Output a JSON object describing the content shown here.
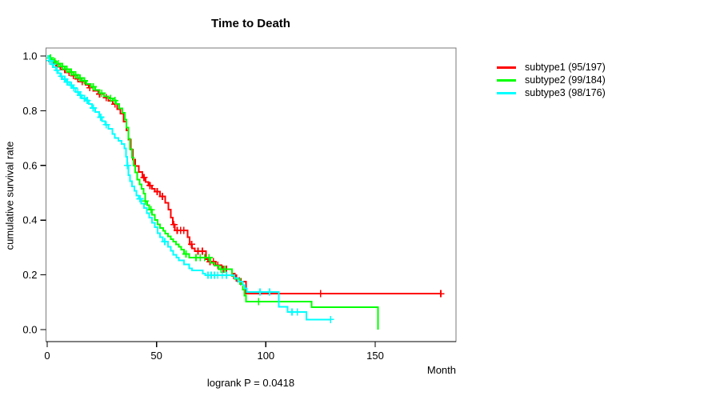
{
  "figure": {
    "title": "Time to Death",
    "ylabel": "cumulative survival rate",
    "xlabel": "Month",
    "footnote": "logrank P = 0.0418"
  },
  "legend": {
    "items": [
      {
        "label": "subtype1 (95/197)",
        "color": "#ff0000"
      },
      {
        "label": "subtype2 (99/184)",
        "color": "#00ff00"
      },
      {
        "label": "subtype3 (98/176)",
        "color": "#00ffff"
      }
    ]
  },
  "chart_data": {
    "type": "line",
    "variant": "kaplan-meier-step",
    "title": "Time to Death",
    "xlabel": "Month",
    "ylabel": "cumulative survival rate",
    "xlim": [
      0,
      187
    ],
    "ylim": [
      -0.04,
      1.04
    ],
    "xticks": [
      {
        "v": 0,
        "label": "0"
      },
      {
        "v": 50,
        "label": "50"
      },
      {
        "v": 100,
        "label": "100"
      },
      {
        "v": 150,
        "label": "150"
      }
    ],
    "yticks": [
      {
        "v": 0,
        "label": "0.0"
      },
      {
        "v": 0.2,
        "label": "0.2"
      },
      {
        "v": 0.4,
        "label": "0.4"
      },
      {
        "v": 0.6,
        "label": "0.6"
      },
      {
        "v": 0.8,
        "label": "0.8"
      },
      {
        "v": 1,
        "label": "1.0"
      }
    ],
    "grid": false,
    "legend_position": "right-outside",
    "logrank_p": 0.0418,
    "series": [
      {
        "name": "subtype1",
        "events_ratio": "95/197",
        "color": "#ff0000",
        "end_month": 180,
        "steps": [
          [
            0,
            1
          ],
          [
            1,
            0.99
          ],
          [
            2,
            0.98
          ],
          [
            3,
            0.971
          ],
          [
            5,
            0.961
          ],
          [
            7,
            0.951
          ],
          [
            9,
            0.94
          ],
          [
            11,
            0.928
          ],
          [
            13,
            0.917
          ],
          [
            15,
            0.906
          ],
          [
            17.5,
            0.895
          ],
          [
            19,
            0.884
          ],
          [
            21,
            0.873
          ],
          [
            23.5,
            0.861
          ],
          [
            26,
            0.848
          ],
          [
            28,
            0.836
          ],
          [
            30,
            0.824
          ],
          [
            32,
            0.806
          ],
          [
            33.5,
            0.79
          ],
          [
            35,
            0.76
          ],
          [
            36.2,
            0.728
          ],
          [
            37.2,
            0.695
          ],
          [
            38.2,
            0.658
          ],
          [
            39.2,
            0.622
          ],
          [
            40.2,
            0.598
          ],
          [
            41.8,
            0.576
          ],
          [
            43.5,
            0.556
          ],
          [
            45,
            0.54
          ],
          [
            46.2,
            0.527
          ],
          [
            48,
            0.514
          ],
          [
            49.2,
            0.504
          ],
          [
            51.6,
            0.487
          ],
          [
            54,
            0.463
          ],
          [
            55.5,
            0.438
          ],
          [
            56.5,
            0.41
          ],
          [
            57.5,
            0.384
          ],
          [
            58.3,
            0.362
          ],
          [
            64.2,
            0.337
          ],
          [
            65.2,
            0.312
          ],
          [
            66.3,
            0.297
          ],
          [
            67.5,
            0.287
          ],
          [
            72.6,
            0.258
          ],
          [
            73.6,
            0.248
          ],
          [
            77,
            0.236
          ],
          [
            79.7,
            0.221
          ],
          [
            84.6,
            0.205
          ],
          [
            85.8,
            0.189
          ],
          [
            87.1,
            0.176
          ],
          [
            91,
            0.131
          ]
        ],
        "censor_marks": [
          [
            2,
            0.98
          ],
          [
            4,
            0.971
          ],
          [
            6,
            0.961
          ],
          [
            8,
            0.951
          ],
          [
            10,
            0.94
          ],
          [
            12,
            0.928
          ],
          [
            14,
            0.917
          ],
          [
            16,
            0.906
          ],
          [
            19.5,
            0.884
          ],
          [
            24,
            0.861
          ],
          [
            27,
            0.848
          ],
          [
            31,
            0.824
          ],
          [
            44.3,
            0.556
          ],
          [
            47,
            0.527
          ],
          [
            50.3,
            0.504
          ],
          [
            52.7,
            0.487
          ],
          [
            57.9,
            0.384
          ],
          [
            59.5,
            0.362
          ],
          [
            61,
            0.362
          ],
          [
            62.5,
            0.362
          ],
          [
            66,
            0.312
          ],
          [
            69,
            0.287
          ],
          [
            71,
            0.287
          ],
          [
            74.5,
            0.248
          ],
          [
            76,
            0.248
          ],
          [
            78,
            0.236
          ],
          [
            80.5,
            0.221
          ],
          [
            82,
            0.221
          ],
          [
            86.5,
            0.189
          ],
          [
            88.5,
            0.176
          ],
          [
            125,
            0.131
          ],
          [
            180,
            0.131
          ]
        ]
      },
      {
        "name": "subtype2",
        "events_ratio": "99/184",
        "color": "#00ff00",
        "end_month": 151.2,
        "steps": [
          [
            0,
            1
          ],
          [
            1,
            0.993
          ],
          [
            2,
            0.986
          ],
          [
            3,
            0.979
          ],
          [
            4,
            0.972
          ],
          [
            6,
            0.962
          ],
          [
            8,
            0.952
          ],
          [
            10,
            0.942
          ],
          [
            12,
            0.931
          ],
          [
            14,
            0.92
          ],
          [
            16,
            0.909
          ],
          [
            18,
            0.898
          ],
          [
            20,
            0.887
          ],
          [
            22,
            0.876
          ],
          [
            24,
            0.864
          ],
          [
            26,
            0.853
          ],
          [
            28,
            0.845
          ],
          [
            30,
            0.837
          ],
          [
            31.5,
            0.824
          ],
          [
            33,
            0.809
          ],
          [
            34.3,
            0.793
          ],
          [
            35.5,
            0.768
          ],
          [
            36.3,
            0.738
          ],
          [
            37.1,
            0.698
          ],
          [
            37.9,
            0.659
          ],
          [
            38.7,
            0.628
          ],
          [
            39.5,
            0.6
          ],
          [
            40.3,
            0.574
          ],
          [
            41.2,
            0.548
          ],
          [
            42.2,
            0.53
          ],
          [
            43.1,
            0.514
          ],
          [
            44,
            0.497
          ],
          [
            44.9,
            0.47
          ],
          [
            45.8,
            0.455
          ],
          [
            46.7,
            0.438
          ],
          [
            48,
            0.419
          ],
          [
            49.2,
            0.4
          ],
          [
            50.4,
            0.385
          ],
          [
            51.6,
            0.371
          ],
          [
            53,
            0.361
          ],
          [
            54,
            0.351
          ],
          [
            55.2,
            0.341
          ],
          [
            56.5,
            0.331
          ],
          [
            57.7,
            0.322
          ],
          [
            58.9,
            0.312
          ],
          [
            60.1,
            0.302
          ],
          [
            61.3,
            0.292
          ],
          [
            62.6,
            0.276
          ],
          [
            65,
            0.263
          ],
          [
            74.7,
            0.244
          ],
          [
            76.5,
            0.234
          ],
          [
            78.4,
            0.221
          ],
          [
            84.5,
            0.196
          ],
          [
            85.7,
            0.185
          ],
          [
            88.2,
            0.166
          ],
          [
            89.4,
            0.146
          ],
          [
            90.2,
            0.124
          ],
          [
            91,
            0.103
          ],
          [
            121,
            0.082
          ],
          [
            151.2,
            0
          ]
        ],
        "censor_marks": [
          [
            1.5,
            0.993
          ],
          [
            3.5,
            0.979
          ],
          [
            5,
            0.972
          ],
          [
            7,
            0.962
          ],
          [
            9,
            0.952
          ],
          [
            11,
            0.942
          ],
          [
            13,
            0.931
          ],
          [
            15,
            0.92
          ],
          [
            17,
            0.909
          ],
          [
            21,
            0.887
          ],
          [
            25,
            0.864
          ],
          [
            29,
            0.845
          ],
          [
            31,
            0.837
          ],
          [
            44.9,
            0.47
          ],
          [
            47.5,
            0.438
          ],
          [
            63.5,
            0.276
          ],
          [
            68,
            0.263
          ],
          [
            70,
            0.263
          ],
          [
            72,
            0.263
          ],
          [
            74,
            0.263
          ],
          [
            79.5,
            0.221
          ],
          [
            81,
            0.221
          ],
          [
            96.7,
            0.103
          ]
        ]
      },
      {
        "name": "subtype3",
        "events_ratio": "98/176",
        "color": "#00ffff",
        "end_month": 129.6,
        "steps": [
          [
            0,
            1
          ],
          [
            0.5,
            0.992
          ],
          [
            1,
            0.983
          ],
          [
            2,
            0.97
          ],
          [
            3,
            0.959
          ],
          [
            4,
            0.948
          ],
          [
            5,
            0.937
          ],
          [
            6,
            0.926
          ],
          [
            7,
            0.915
          ],
          [
            8.5,
            0.905
          ],
          [
            10,
            0.894
          ],
          [
            11.5,
            0.883
          ],
          [
            13,
            0.869
          ],
          [
            14.5,
            0.856
          ],
          [
            16,
            0.845
          ],
          [
            17.6,
            0.837
          ],
          [
            19,
            0.824
          ],
          [
            20.5,
            0.81
          ],
          [
            22,
            0.795
          ],
          [
            23.7,
            0.776
          ],
          [
            25,
            0.762
          ],
          [
            26.5,
            0.749
          ],
          [
            28,
            0.734
          ],
          [
            29.8,
            0.715
          ],
          [
            31,
            0.701
          ],
          [
            32.6,
            0.69
          ],
          [
            34,
            0.679
          ],
          [
            35.3,
            0.663
          ],
          [
            36,
            0.632
          ],
          [
            36.6,
            0.6
          ],
          [
            37.2,
            0.565
          ],
          [
            37.8,
            0.542
          ],
          [
            38.8,
            0.524
          ],
          [
            39.8,
            0.508
          ],
          [
            40.8,
            0.49
          ],
          [
            41.8,
            0.478
          ],
          [
            43,
            0.461
          ],
          [
            44.3,
            0.444
          ],
          [
            45.5,
            0.426
          ],
          [
            46.7,
            0.41
          ],
          [
            48,
            0.39
          ],
          [
            49.2,
            0.375
          ],
          [
            50.4,
            0.352
          ],
          [
            51.6,
            0.337
          ],
          [
            52.8,
            0.322
          ],
          [
            55.3,
            0.303
          ],
          [
            56.5,
            0.288
          ],
          [
            57.7,
            0.274
          ],
          [
            59,
            0.263
          ],
          [
            60.1,
            0.253
          ],
          [
            62.6,
            0.239
          ],
          [
            65,
            0.224
          ],
          [
            66.2,
            0.217
          ],
          [
            71.1,
            0.205
          ],
          [
            72.3,
            0.199
          ],
          [
            85.7,
            0.189
          ],
          [
            87.2,
            0.176
          ],
          [
            89.4,
            0.162
          ],
          [
            90.3,
            0.15
          ],
          [
            91.2,
            0.137
          ],
          [
            105.9,
            0.084
          ],
          [
            110,
            0.064
          ],
          [
            118.6,
            0.037
          ]
        ],
        "censor_marks": [
          [
            1.2,
            0.983
          ],
          [
            2.5,
            0.97
          ],
          [
            4.5,
            0.948
          ],
          [
            6.5,
            0.926
          ],
          [
            8,
            0.915
          ],
          [
            9.2,
            0.905
          ],
          [
            11,
            0.894
          ],
          [
            12.2,
            0.883
          ],
          [
            14,
            0.869
          ],
          [
            15.2,
            0.856
          ],
          [
            17,
            0.845
          ],
          [
            18.3,
            0.837
          ],
          [
            21,
            0.81
          ],
          [
            24.5,
            0.776
          ],
          [
            27,
            0.749
          ],
          [
            36.8,
            0.6
          ],
          [
            42.4,
            0.478
          ],
          [
            53.8,
            0.322
          ],
          [
            73.5,
            0.199
          ],
          [
            75,
            0.199
          ],
          [
            76.5,
            0.199
          ],
          [
            78,
            0.199
          ],
          [
            80,
            0.199
          ],
          [
            82,
            0.199
          ],
          [
            97.3,
            0.137
          ],
          [
            101.7,
            0.137
          ],
          [
            112,
            0.064
          ],
          [
            114.4,
            0.064
          ],
          [
            129.6,
            0.037
          ]
        ]
      }
    ]
  }
}
